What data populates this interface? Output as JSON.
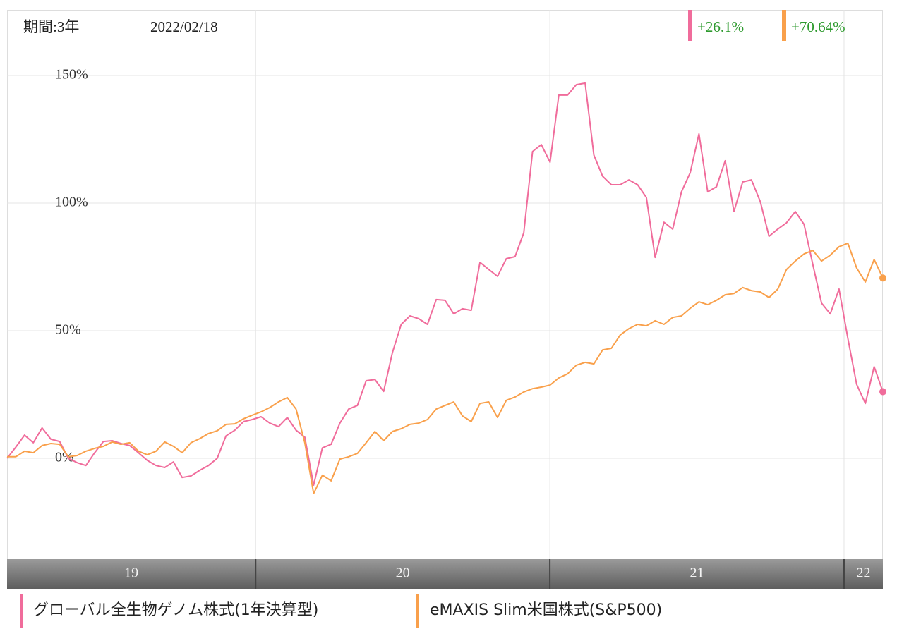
{
  "chart_data": {
    "type": "line",
    "period": "期間:3年",
    "date": "2022/02/18",
    "xlim": [
      2019.155,
      2022.132
    ],
    "xticks": [
      {
        "value": 2019,
        "label": "19"
      },
      {
        "value": 2020,
        "label": "20"
      },
      {
        "value": 2021,
        "label": "21"
      },
      {
        "value": 2022,
        "label": "22"
      }
    ],
    "ylim": [
      -39.5,
      175.7
    ],
    "yticks": [
      {
        "value": 0,
        "label": "0%"
      },
      {
        "value": 50,
        "label": "50%"
      },
      {
        "value": 100,
        "label": "100%"
      },
      {
        "value": 150,
        "label": "150%"
      }
    ],
    "grid": true,
    "series": [
      {
        "name": "グローバル全生物ゲノム株式(1年決算型)",
        "color": "#f06c9b",
        "return_label": "+26.1%",
        "values": [
          0,
          4.4,
          9.1,
          6.1,
          11.9,
          7.5,
          6.6,
          0,
          -1.7,
          -2.8,
          2.2,
          6.6,
          6.9,
          5.8,
          5,
          2.2,
          -0.8,
          -2.8,
          -3.6,
          -1.4,
          -7.5,
          -6.9,
          -4.7,
          -2.8,
          0,
          8.8,
          11,
          14.4,
          15.2,
          16.3,
          13.8,
          12.4,
          16,
          11,
          8.3,
          -10.5,
          4.1,
          5.5,
          13.8,
          19.3,
          20.7,
          30.4,
          30.9,
          26.2,
          41.4,
          52.5,
          55.8,
          54.7,
          52.5,
          62.2,
          61.9,
          56.6,
          58.6,
          58,
          76.8,
          74,
          71.3,
          78.2,
          79,
          88.4,
          120.2,
          122.9,
          116,
          142.3,
          142.3,
          146.4,
          147,
          118.8,
          110.5,
          107.2,
          107.2,
          109.1,
          107.2,
          102.2,
          78.7,
          92.5,
          89.8,
          104.4,
          111.9,
          127.1,
          104.4,
          106.4,
          116.6,
          96.7,
          108.3,
          109.1,
          100.6,
          87,
          89.8,
          92.3,
          96.7,
          91.7,
          76,
          60.8,
          56.6,
          66.3,
          47,
          29,
          21.5,
          35.9,
          26.1
        ]
      },
      {
        "name": "eMAXIS Slim米国株式(S&P500)",
        "color": "#f9a04b",
        "return_label": "+70.64%",
        "values": [
          0.6,
          0.6,
          2.8,
          2.2,
          5,
          5.8,
          5.5,
          0.6,
          1.1,
          2.8,
          3.9,
          4.7,
          6.4,
          5.5,
          6.1,
          2.8,
          1.4,
          2.8,
          6.4,
          4.7,
          2.2,
          6.1,
          7.7,
          9.7,
          10.8,
          13.3,
          13.5,
          15.5,
          16.9,
          18.2,
          19.9,
          22.1,
          23.8,
          19.3,
          6.1,
          -13.8,
          -6.6,
          -8.8,
          -0.3,
          0.6,
          1.9,
          6.1,
          10.5,
          6.9,
          10.5,
          11.6,
          13.3,
          13.8,
          15.2,
          19.3,
          20.7,
          22.1,
          16.6,
          14.4,
          21.5,
          22.1,
          16,
          22.7,
          24,
          26,
          27.3,
          27.9,
          28.7,
          31.5,
          33.1,
          36.5,
          37.6,
          37,
          42.5,
          43.1,
          48.3,
          50.8,
          52.5,
          51.9,
          53.9,
          52.5,
          55.2,
          55.8,
          58.8,
          61.3,
          60.2,
          61.9,
          64.1,
          64.6,
          66.9,
          65.7,
          65.2,
          63,
          66.3,
          74,
          77.3,
          80.1,
          81.5,
          77.3,
          79.6,
          82.9,
          84.3,
          74.6,
          69.1,
          77.9,
          70.64
        ]
      }
    ]
  }
}
